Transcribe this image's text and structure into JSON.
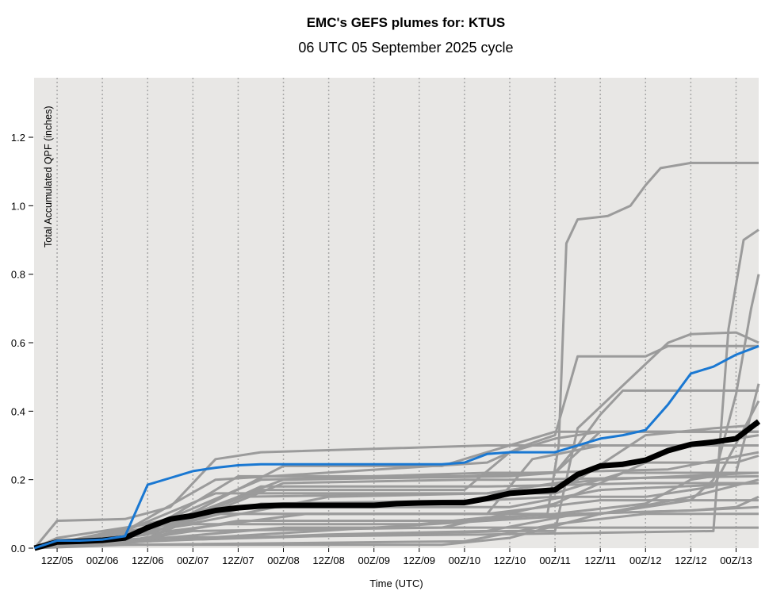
{
  "chart_data": {
    "type": "line",
    "title": "EMC's GEFS plumes for: KTUS",
    "subtitle": "06 UTC 05 September 2025 cycle",
    "xlabel": "Time (UTC)",
    "ylabel": "Total Accumulated QPF (inches)",
    "x_units": "forecast hour from 06Z/05",
    "xlim": [
      0,
      192
    ],
    "ylim": [
      0,
      1.37
    ],
    "grid": "vertical dotted at x ticks",
    "yticks": [
      0.0,
      0.2,
      0.4,
      0.6,
      0.8,
      1.0,
      1.2
    ],
    "ytick_labels": [
      "0.0",
      "0.2",
      "0.4",
      "0.6",
      "0.8",
      "1.0",
      "1.2"
    ],
    "xticks": [
      6,
      18,
      30,
      42,
      54,
      66,
      78,
      90,
      102,
      114,
      126,
      138,
      150,
      162,
      174,
      186
    ],
    "xtick_labels": [
      "12Z/05",
      "00Z/06",
      "12Z/06",
      "00Z/07",
      "12Z/07",
      "00Z/08",
      "12Z/08",
      "00Z/09",
      "12Z/09",
      "00Z/10",
      "12Z/10",
      "00Z/11",
      "12Z/11",
      "00Z/12",
      "12Z/12",
      "00Z/13"
    ],
    "colors": {
      "background": "#e8e7e5",
      "member": "#9b9b9b",
      "control": "#1a78d2",
      "mean": "#000000"
    },
    "x": [
      0,
      6,
      12,
      18,
      24,
      30,
      36,
      42,
      48,
      54,
      60,
      66,
      72,
      78,
      84,
      90,
      96,
      102,
      108,
      114,
      120,
      126,
      132,
      138,
      144,
      150,
      156,
      162,
      168,
      174,
      180,
      186,
      192
    ],
    "mean": [
      0.0,
      0.018,
      0.02,
      0.023,
      0.03,
      0.06,
      0.085,
      0.095,
      0.11,
      0.118,
      0.123,
      0.125,
      0.125,
      0.125,
      0.125,
      0.125,
      0.13,
      0.132,
      0.133,
      0.133,
      0.145,
      0.16,
      0.165,
      0.17,
      0.215,
      0.24,
      0.245,
      0.257,
      0.285,
      0.303,
      0.31,
      0.32,
      0.37
    ],
    "control": [
      0,
      0.022,
      0.022,
      0.025,
      0.035,
      0.185,
      0.205,
      0.225,
      0.235,
      0.242,
      0.245,
      0.245,
      0.245,
      0.245,
      0.245,
      0.245,
      0.245,
      0.245,
      0.245,
      0.25,
      0.275,
      0.28,
      0.28,
      0.28,
      0.3,
      0.32,
      0.33,
      0.345,
      0.42,
      0.51,
      0.53,
      0.565,
      0.59
    ],
    "members": [
      [
        [
          0,
          0
        ],
        [
          6,
          0.08
        ],
        [
          24,
          0.085
        ],
        [
          36,
          0.12
        ],
        [
          48,
          0.26
        ],
        [
          60,
          0.28
        ],
        [
          120,
          0.3
        ],
        [
          192,
          0.3
        ]
      ],
      [
        [
          0,
          0
        ],
        [
          6,
          0.03
        ],
        [
          48,
          0.1
        ],
        [
          136,
          0.1
        ],
        [
          139,
          0.3
        ],
        [
          141,
          0.89
        ],
        [
          144,
          0.96
        ],
        [
          152,
          0.97
        ],
        [
          158,
          1.0
        ],
        [
          162,
          1.06
        ],
        [
          166,
          1.11
        ],
        [
          174,
          1.125
        ],
        [
          192,
          1.125
        ]
      ],
      [
        [
          0,
          0
        ],
        [
          30,
          0.03
        ],
        [
          120,
          0.04
        ],
        [
          180,
          0.05
        ],
        [
          184,
          0.64
        ],
        [
          188,
          0.9
        ],
        [
          192,
          0.93
        ]
      ],
      [
        [
          0,
          0
        ],
        [
          30,
          0.02
        ],
        [
          150,
          0.1
        ],
        [
          174,
          0.14
        ],
        [
          180,
          0.2
        ],
        [
          186,
          0.45
        ],
        [
          190,
          0.7
        ],
        [
          192,
          0.8
        ]
      ],
      [
        [
          0,
          0
        ],
        [
          24,
          0.05
        ],
        [
          48,
          0.2
        ],
        [
          120,
          0.25
        ],
        [
          130,
          0.3
        ],
        [
          138,
          0.33
        ],
        [
          144,
          0.56
        ],
        [
          162,
          0.56
        ],
        [
          168,
          0.59
        ],
        [
          192,
          0.59
        ]
      ],
      [
        [
          0,
          0
        ],
        [
          30,
          0.06
        ],
        [
          60,
          0.2
        ],
        [
          120,
          0.22
        ],
        [
          138,
          0.22
        ],
        [
          144,
          0.3
        ],
        [
          150,
          0.39
        ],
        [
          156,
          0.46
        ],
        [
          192,
          0.46
        ]
      ],
      [
        [
          0,
          0
        ],
        [
          24,
          0.02
        ],
        [
          126,
          0.05
        ],
        [
          138,
          0.05
        ],
        [
          144,
          0.35
        ],
        [
          168,
          0.6
        ],
        [
          174,
          0.625
        ],
        [
          186,
          0.63
        ],
        [
          192,
          0.6
        ]
      ],
      [
        [
          0,
          0
        ],
        [
          30,
          0.05
        ],
        [
          66,
          0.2
        ],
        [
          126,
          0.21
        ],
        [
          138,
          0.22
        ],
        [
          150,
          0.34
        ],
        [
          168,
          0.34
        ],
        [
          192,
          0.34
        ]
      ],
      [
        [
          0,
          0
        ],
        [
          30,
          0.04
        ],
        [
          60,
          0.17
        ],
        [
          114,
          0.17
        ],
        [
          126,
          0.28
        ],
        [
          138,
          0.32
        ],
        [
          150,
          0.34
        ],
        [
          192,
          0.34
        ]
      ],
      [
        [
          0,
          0
        ],
        [
          30,
          0.03
        ],
        [
          54,
          0.15
        ],
        [
          120,
          0.16
        ],
        [
          132,
          0.18
        ],
        [
          150,
          0.2
        ],
        [
          192,
          0.22
        ]
      ],
      [
        [
          0,
          0
        ],
        [
          36,
          0.05
        ],
        [
          72,
          0.1
        ],
        [
          120,
          0.1
        ],
        [
          132,
          0.26
        ],
        [
          150,
          0.3
        ],
        [
          174,
          0.3
        ],
        [
          192,
          0.33
        ]
      ],
      [
        [
          0,
          0
        ],
        [
          24,
          0.02
        ],
        [
          66,
          0.06
        ],
        [
          120,
          0.06
        ],
        [
          192,
          0.06
        ]
      ],
      [
        [
          0,
          0
        ],
        [
          42,
          0.1
        ],
        [
          120,
          0.1
        ],
        [
          150,
          0.14
        ],
        [
          174,
          0.14
        ],
        [
          192,
          0.14
        ]
      ],
      [
        [
          0,
          0
        ],
        [
          30,
          0.03
        ],
        [
          66,
          0.19
        ],
        [
          114,
          0.2
        ],
        [
          126,
          0.2
        ],
        [
          192,
          0.21
        ]
      ],
      [
        [
          0,
          0
        ],
        [
          24,
          0.02
        ],
        [
          54,
          0.08
        ],
        [
          114,
          0.08
        ],
        [
          138,
          0.1
        ],
        [
          162,
          0.13
        ],
        [
          174,
          0.2
        ],
        [
          186,
          0.22
        ],
        [
          192,
          0.48
        ]
      ],
      [
        [
          0,
          0
        ],
        [
          12,
          0.01
        ],
        [
          108,
          0.01
        ],
        [
          126,
          0.03
        ],
        [
          150,
          0.1
        ],
        [
          174,
          0.15
        ],
        [
          192,
          0.2
        ]
      ],
      [
        [
          0,
          0
        ],
        [
          36,
          0.06
        ],
        [
          78,
          0.15
        ],
        [
          120,
          0.16
        ],
        [
          144,
          0.2
        ],
        [
          162,
          0.33
        ],
        [
          180,
          0.35
        ],
        [
          192,
          0.36
        ]
      ],
      [
        [
          0,
          0
        ],
        [
          24,
          0.01
        ],
        [
          114,
          0.02
        ],
        [
          138,
          0.07
        ],
        [
          162,
          0.1
        ],
        [
          192,
          0.1
        ]
      ],
      [
        [
          0,
          0
        ],
        [
          30,
          0.04
        ],
        [
          48,
          0.12
        ],
        [
          126,
          0.12
        ],
        [
          150,
          0.17
        ],
        [
          192,
          0.19
        ]
      ],
      [
        [
          0,
          0
        ],
        [
          24,
          0.02
        ],
        [
          42,
          0.05
        ],
        [
          108,
          0.06
        ],
        [
          138,
          0.13
        ],
        [
          162,
          0.25
        ],
        [
          186,
          0.25
        ],
        [
          192,
          0.27
        ]
      ],
      [
        [
          0,
          0
        ],
        [
          36,
          0.06
        ],
        [
          60,
          0.18
        ],
        [
          120,
          0.18
        ],
        [
          162,
          0.19
        ],
        [
          192,
          0.19
        ]
      ],
      [
        [
          0,
          0
        ],
        [
          18,
          0.03
        ],
        [
          42,
          0.07
        ],
        [
          102,
          0.07
        ],
        [
          120,
          0.09
        ],
        [
          144,
          0.1
        ],
        [
          174,
          0.11
        ],
        [
          192,
          0.12
        ]
      ],
      [
        [
          0,
          0
        ],
        [
          30,
          0.05
        ],
        [
          54,
          0.21
        ],
        [
          114,
          0.21
        ],
        [
          132,
          0.22
        ],
        [
          168,
          0.23
        ],
        [
          192,
          0.28
        ]
      ],
      [
        [
          0,
          0
        ],
        [
          24,
          0.03
        ],
        [
          60,
          0.13
        ],
        [
          120,
          0.14
        ],
        [
          138,
          0.15
        ],
        [
          162,
          0.15
        ],
        [
          180,
          0.18
        ],
        [
          192,
          0.43
        ]
      ],
      [
        [
          0,
          0
        ],
        [
          30,
          0.02
        ],
        [
          78,
          0.04
        ],
        [
          120,
          0.05
        ],
        [
          144,
          0.1
        ],
        [
          174,
          0.11
        ],
        [
          186,
          0.12
        ],
        [
          192,
          0.15
        ]
      ],
      [
        [
          0,
          0
        ],
        [
          24,
          0.05
        ],
        [
          48,
          0.16
        ],
        [
          138,
          0.16
        ],
        [
          156,
          0.22
        ],
        [
          192,
          0.22
        ]
      ],
      [
        [
          0,
          0
        ],
        [
          36,
          0.07
        ],
        [
          66,
          0.24
        ],
        [
          108,
          0.24
        ],
        [
          120,
          0.28
        ],
        [
          138,
          0.34
        ],
        [
          162,
          0.34
        ],
        [
          192,
          0.34
        ]
      ]
    ]
  }
}
